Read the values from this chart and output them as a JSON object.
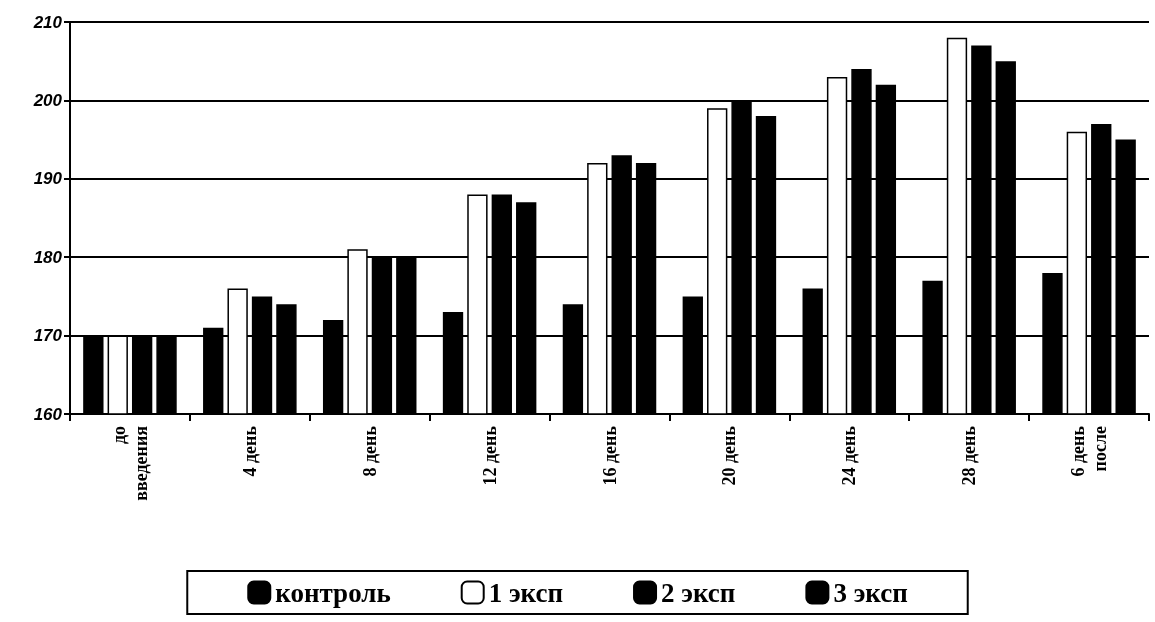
{
  "chart_data": {
    "type": "bar",
    "categories": [
      "до введения",
      "4 день",
      "8 день",
      "12 день",
      "16 день",
      "20 день",
      "24 день",
      "28 день",
      "6 день после"
    ],
    "series": [
      {
        "name": "контроль",
        "color": "#000000",
        "values": [
          170,
          171,
          172,
          173,
          174,
          175,
          176,
          177,
          178
        ]
      },
      {
        "name": "1 эксп",
        "color": "#ffffff",
        "values": [
          170,
          176,
          181,
          188,
          192,
          199,
          203,
          208,
          196
        ]
      },
      {
        "name": "2 эксп",
        "color": "#000000",
        "values": [
          170,
          175,
          180,
          188,
          193,
          200,
          204,
          207,
          197
        ]
      },
      {
        "name": "3 эксп",
        "color": "#000000",
        "values": [
          170,
          174,
          180,
          187,
          192,
          198,
          202,
          205,
          195
        ]
      }
    ],
    "ylim": [
      160,
      210
    ],
    "yticks": [
      160,
      170,
      180,
      190,
      200,
      210
    ],
    "grid": "y",
    "legend": "bottom"
  }
}
